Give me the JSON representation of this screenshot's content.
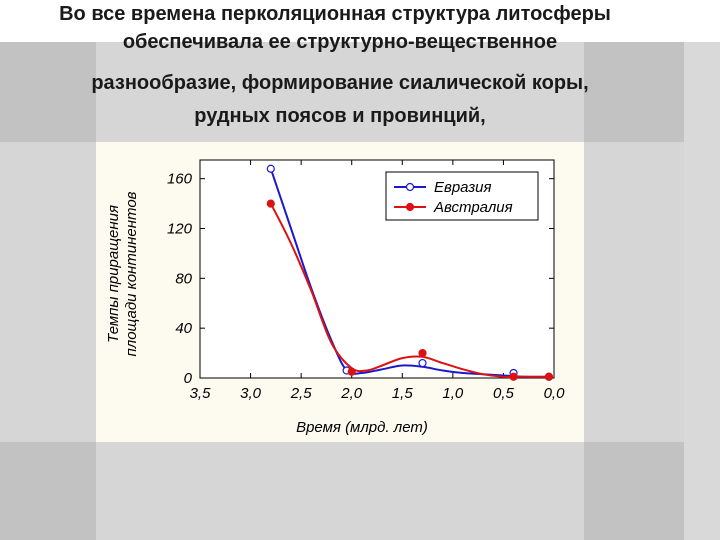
{
  "slide": {
    "title_lines": [
      "Во все времена перколяционная структура литосферы",
      "обеспечивала ее структурно-вещественное",
      "разнообразие, формирование сиалической коры,",
      "рудных поясов и провинций,"
    ]
  },
  "colors": {
    "eurasia": "#1a1acc",
    "australia": "#dd1111",
    "background": "#d6d6d6",
    "chart_background": "#fdfaf0"
  },
  "chart_data": {
    "type": "line",
    "title": "",
    "xlabel": "Время (млрд. лет)",
    "ylabel_lines": [
      "Темпы приращения",
      "площади континентов"
    ],
    "xlim": [
      3.5,
      0.0
    ],
    "ylim": [
      0,
      175
    ],
    "x_ticks": [
      3.5,
      3.0,
      2.5,
      2.0,
      1.5,
      1.0,
      0.5,
      0.0
    ],
    "x_tick_labels": [
      "3,5",
      "3,0",
      "2,5",
      "2,0",
      "1,5",
      "1,0",
      "0,5",
      "0,0"
    ],
    "y_ticks": [
      0,
      40,
      80,
      120,
      160
    ],
    "y_tick_labels": [
      "0",
      "40",
      "80",
      "120",
      "160"
    ],
    "legend_position": "top-right",
    "series": [
      {
        "name": "Евразия",
        "marker": "open-circle",
        "points_x": [
          2.8,
          2.05,
          1.3,
          0.4,
          0.05
        ],
        "points_y": [
          168,
          6,
          12,
          4,
          1
        ],
        "curve_x": [
          2.8,
          2.6,
          2.4,
          2.2,
          2.05,
          1.9,
          1.7,
          1.5,
          1.3,
          1.1,
          0.9,
          0.7,
          0.5,
          0.3,
          0.05
        ],
        "curve_y": [
          168,
          120,
          72,
          30,
          6,
          4,
          7,
          10,
          9,
          6,
          4,
          3,
          2,
          1,
          1
        ]
      },
      {
        "name": "Австралия",
        "marker": "filled-circle",
        "points_x": [
          2.8,
          2.0,
          1.3,
          0.4,
          0.05
        ],
        "points_y": [
          140,
          5,
          20,
          1,
          1
        ],
        "curve_x": [
          2.8,
          2.6,
          2.4,
          2.2,
          2.0,
          1.85,
          1.7,
          1.5,
          1.3,
          1.1,
          0.9,
          0.7,
          0.5,
          0.3,
          0.05
        ],
        "curve_y": [
          140,
          108,
          70,
          28,
          8,
          6,
          10,
          16,
          17,
          12,
          7,
          3,
          1,
          1,
          1
        ]
      }
    ]
  }
}
